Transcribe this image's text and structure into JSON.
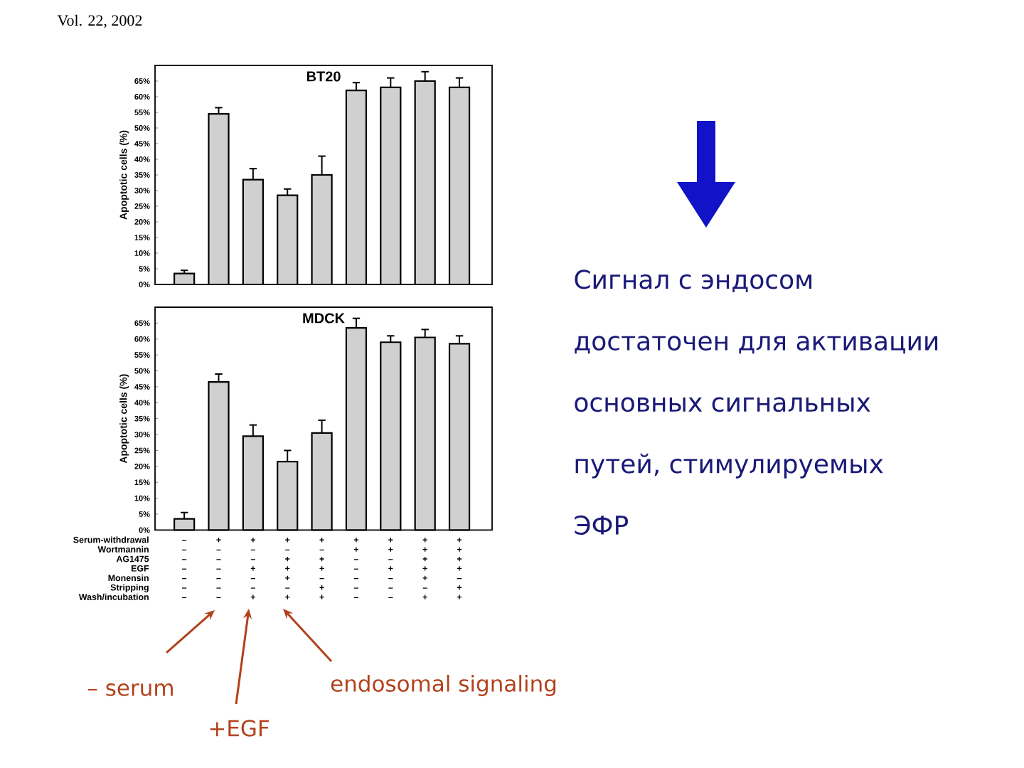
{
  "chart_data": [
    {
      "type": "bar",
      "title": "BT20",
      "ylabel": "Apoptotic cells (%)",
      "categories": [
        "–\n–\n–\n–\n–\n–\n–",
        "+\n–\n–\n–\n–\n–\n–",
        "+\n–\n–\n+\n–\n–\n+",
        "+\n–\n+\n+\n+\n–\n+",
        "+\n–\n+\n+\n–\n+\n+",
        "+\n+\n–\n–\n–\n–\n–",
        "+\n+\n–\n+\n–\n–\n–",
        "+\n+\n+\n+\n+\n–\n+",
        "+\n+\n+\n+\n–\n+\n+"
      ],
      "values": [
        3.5,
        54.5,
        33.5,
        28.5,
        35,
        62,
        63,
        65,
        63
      ],
      "errors": [
        [
          3.5,
          4.5
        ],
        [
          54.5,
          56.5
        ],
        [
          33.5,
          37
        ],
        [
          28.5,
          30.5
        ],
        [
          35,
          41
        ],
        [
          62,
          64.5
        ],
        [
          63,
          66
        ],
        [
          65,
          68
        ],
        [
          63,
          66
        ]
      ],
      "color": "#d0d0d0",
      "ylim": [
        0,
        70
      ],
      "yticks": [
        {
          "value": 0,
          "label": "0%"
        },
        {
          "value": 5,
          "label": "5%"
        },
        {
          "value": 10,
          "label": "10%"
        },
        {
          "value": 15,
          "label": "15%"
        },
        {
          "value": 20,
          "label": "20%"
        },
        {
          "value": 25,
          "label": "25%"
        },
        {
          "value": 30,
          "label": "30%"
        },
        {
          "value": 35,
          "label": "35%"
        },
        {
          "value": 40,
          "label": "40%"
        },
        {
          "value": 45,
          "label": "45%"
        },
        {
          "value": 50,
          "label": "50%"
        },
        {
          "value": 55,
          "label": "55%"
        },
        {
          "value": 60,
          "label": "60%"
        },
        {
          "value": 65,
          "label": "65%"
        }
      ],
      "tick_labels": "y",
      "annotations": [
        "Vol. 22, 2002"
      ]
    },
    {
      "type": "bar",
      "title": "MDCK",
      "ylabel": "Apoptotic cells (%)",
      "categories": [
        "–\n–\n–\n–\n–\n–\n–",
        "+\n–\n–\n–\n–\n–\n–",
        "+\n–\n–\n+\n–\n–\n+",
        "+\n–\n+\n+\n+\n–\n+",
        "+\n–\n+\n+\n–\n+\n+",
        "+\n+\n–\n–\n–\n–\n–",
        "+\n+\n–\n+\n–\n–\n–",
        "+\n+\n+\n+\n+\n–\n+",
        "+\n+\n+\n+\n–\n+\n+"
      ],
      "values": [
        3.5,
        46.5,
        29.5,
        21.5,
        30.5,
        63.5,
        59,
        60.5,
        58.5
      ],
      "errors": [
        [
          3.5,
          5.5
        ],
        [
          46.5,
          49
        ],
        [
          29.5,
          33
        ],
        [
          21.5,
          25
        ],
        [
          30.5,
          34.5
        ],
        [
          63.5,
          66.5
        ],
        [
          59,
          61
        ],
        [
          60.5,
          63
        ],
        [
          58.5,
          61
        ]
      ],
      "color": "#d0d0d0",
      "ylim": [
        0,
        70
      ],
      "yticks": [
        {
          "value": 0,
          "label": "0%"
        },
        {
          "value": 5,
          "label": "5%"
        },
        {
          "value": 10,
          "label": "10%"
        },
        {
          "value": 15,
          "label": "15%"
        },
        {
          "value": 20,
          "label": "20%"
        },
        {
          "value": 25,
          "label": "25%"
        },
        {
          "value": 30,
          "label": "30%"
        },
        {
          "value": 35,
          "label": "35%"
        },
        {
          "value": 40,
          "label": "40%"
        },
        {
          "value": 45,
          "label": "45%"
        },
        {
          "value": 50,
          "label": "50%"
        },
        {
          "value": 55,
          "label": "55%"
        },
        {
          "value": 60,
          "label": "60%"
        },
        {
          "value": 65,
          "label": "65%"
        }
      ],
      "annotations": [
        "Serum-withdrawal",
        "Wortmannin",
        "AG1475",
        "EGF",
        "Monensin",
        "Stripping",
        "Wash/incubation",
        "– serum",
        "+EGF",
        "endosomal signaling"
      ]
    },
    {
      "type": "other",
      "annotations": [
        "Сигнал с эндосом",
        "достаточен для активации",
        "основных сигнальных",
        "путей, стимулируемых",
        "ЭФР"
      ]
    }
  ]
}
